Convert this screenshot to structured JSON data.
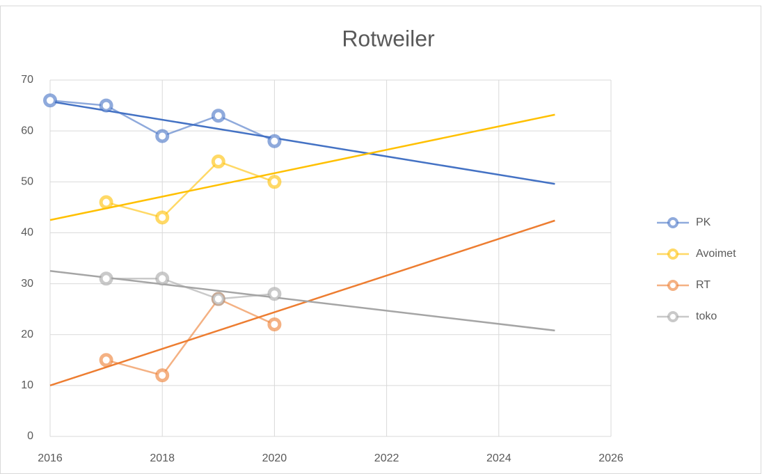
{
  "chart_data": {
    "type": "scatter-line",
    "title": "Rotweiler",
    "x": [
      2016,
      2017,
      2018,
      2019,
      2020
    ],
    "series": [
      {
        "name": "PK",
        "color": "#4472c4",
        "values": [
          66,
          65,
          59,
          63,
          58
        ]
      },
      {
        "name": "Avoimet",
        "color": "#ffc000",
        "values": [
          null,
          46,
          43,
          54,
          50
        ]
      },
      {
        "name": "RT",
        "color": "#ed7d31",
        "values": [
          null,
          15,
          12,
          27,
          22
        ]
      },
      {
        "name": "toko",
        "color": "#a5a5a5",
        "values": [
          null,
          31,
          31,
          27,
          28
        ]
      }
    ],
    "trendline": "linear",
    "trend_xlim": [
      2016,
      2025
    ],
    "xlim": [
      2016,
      2026
    ],
    "xticks": [
      2016,
      2018,
      2020,
      2022,
      2024,
      2026
    ],
    "ylim": [
      0,
      70
    ],
    "yticks": [
      0,
      10,
      20,
      30,
      40,
      50,
      60,
      70
    ],
    "grid": true,
    "legend": "right"
  }
}
